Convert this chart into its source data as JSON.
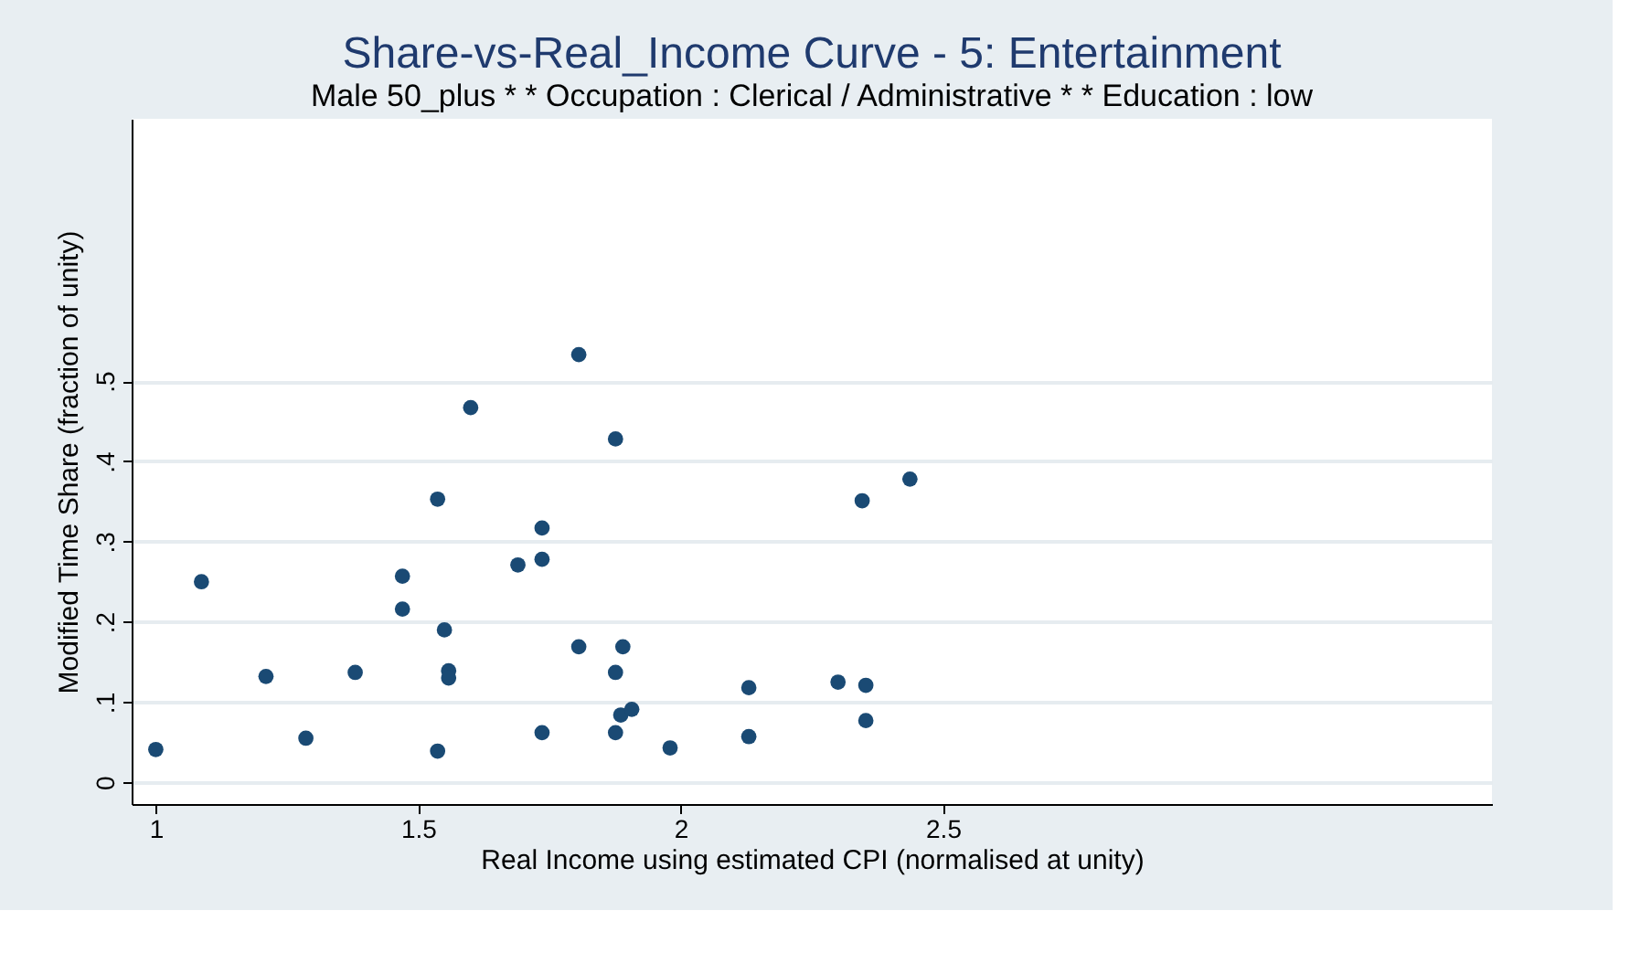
{
  "chart_data": {
    "type": "scatter",
    "title": "Share-vs-Real_Income Curve - 5: Entertainment",
    "subtitle": "Male 50_plus * * Occupation : Clerical / Administrative * * Education : low",
    "xlabel": "Real Income using estimated CPI (normalised at unity)",
    "ylabel": "Modified Time Share (fraction of unity)",
    "x": [
      1.0,
      1.087,
      1.21,
      1.286,
      1.38,
      1.47,
      1.47,
      1.537,
      1.537,
      1.55,
      1.558,
      1.558,
      1.6,
      1.69,
      1.736,
      1.736,
      1.736,
      1.806,
      1.806,
      1.876,
      1.876,
      1.876,
      1.89,
      1.886,
      1.907,
      1.98,
      2.13,
      2.13,
      2.3,
      2.353,
      2.346,
      2.353,
      2.437
    ],
    "series": [
      {
        "color": "#1a4a74",
        "values": [
          0.041,
          0.25,
          0.132,
          0.055,
          0.137,
          0.257,
          0.216,
          0.353,
          0.039,
          0.19,
          0.139,
          0.13,
          0.467,
          0.271,
          0.278,
          0.317,
          0.062,
          0.533,
          0.169,
          0.428,
          0.137,
          0.062,
          0.169,
          0.084,
          0.091,
          0.043,
          0.118,
          0.057,
          0.125,
          0.121,
          0.351,
          0.077,
          0.378
        ]
      }
    ],
    "xlim": [
      0.954,
      3.546
    ],
    "ylim": [
      -0.027,
      0.827
    ],
    "xticks": [
      1,
      1.5,
      2,
      2.5
    ],
    "yticks": [
      {
        "value": 0,
        "label": "0"
      },
      {
        "value": 0.1,
        "label": ".1"
      },
      {
        "value": 0.2,
        "label": ".2"
      },
      {
        "value": 0.3,
        "label": ".3"
      },
      {
        "value": 0.4,
        "label": ".4"
      },
      {
        "value": 0.5,
        "label": ".5"
      }
    ],
    "grid": "y",
    "marker": "circle"
  }
}
